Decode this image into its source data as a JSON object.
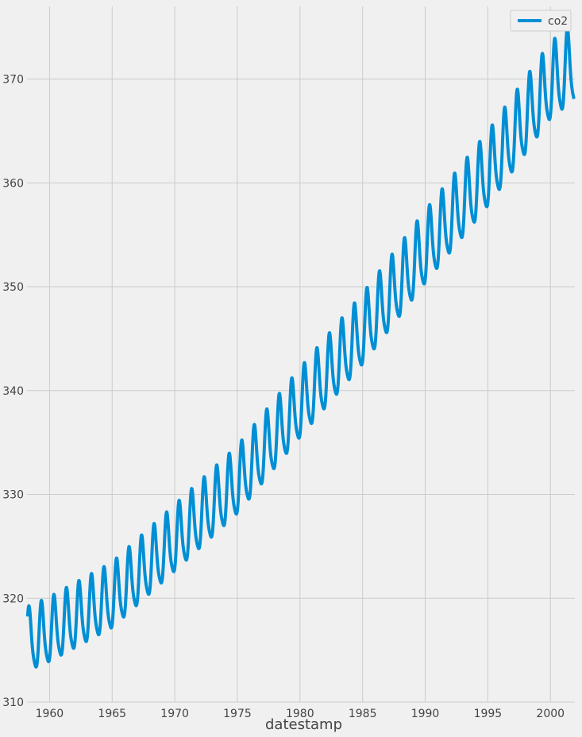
{
  "chart_data": {
    "type": "line",
    "title": "",
    "xlabel": "datestamp",
    "ylabel": "",
    "xlim": [
      1958.2,
      2001.95
    ],
    "ylim": [
      310,
      377
    ],
    "x_ticks": [
      1960,
      1965,
      1970,
      1975,
      1980,
      1985,
      1990,
      1995,
      2000
    ],
    "y_ticks": [
      310,
      320,
      330,
      340,
      350,
      360,
      370
    ],
    "grid": true,
    "legend_position": "top-right",
    "colors": {
      "line": "#008fd5",
      "background": "#f0f0f0",
      "grid": "#cbcbcb",
      "text": "#444444"
    },
    "series": [
      {
        "name": "co2",
        "trend": {
          "x": [
            1958.25,
            1960,
            1965,
            1970,
            1975,
            1980,
            1985,
            1990,
            1995,
            2000,
            2001.9
          ],
          "y": [
            315.7,
            316.6,
            319.9,
            325.4,
            331.0,
            338.4,
            345.5,
            353.4,
            360.9,
            369.4,
            371.2
          ]
        },
        "seasonal_amplitude": {
          "x": [
            1958.25,
            1970,
            1985,
            2001.9
          ],
          "y": [
            3.0,
            3.1,
            3.3,
            3.6
          ]
        },
        "peak_month_fraction": 0.37
      }
    ]
  }
}
